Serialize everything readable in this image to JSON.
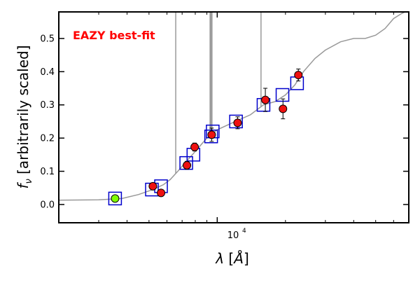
{
  "chart_data": {
    "type": "scatter",
    "title": "",
    "annotation": "EAZY best-fit",
    "annotation_color": "#ff0000",
    "xlabel": "λ [Å]",
    "ylabel": "f_ν [arbitrarily scaled]",
    "xscale": "log",
    "xlim": [
      2000,
      70000
    ],
    "ylim": [
      -0.055,
      0.58
    ],
    "grid": false,
    "x_tick_labels": [
      {
        "value": 10000,
        "label": "10^4"
      }
    ],
    "y_ticks": [
      0.0,
      0.1,
      0.2,
      0.3,
      0.4,
      0.5
    ],
    "y_tick_labels": [
      "0.0",
      "0.1",
      "0.2",
      "0.3",
      "0.4",
      "0.5"
    ],
    "colors": {
      "observed": "#ee1111",
      "template_flux": "#0000cc",
      "highlight": "#7fff00",
      "template_line": "#999999"
    },
    "series": [
      {
        "kind": "observed_photometry",
        "points": [
          {
            "x": 3543,
            "y": 0.018,
            "err": 0.005,
            "highlight": true
          },
          {
            "x": 5200,
            "y": 0.055,
            "err": 0.005
          },
          {
            "x": 5650,
            "y": 0.035,
            "err": 0.005
          },
          {
            "x": 7350,
            "y": 0.118,
            "err": 0.012
          },
          {
            "x": 7950,
            "y": 0.173,
            "err": 0.012
          },
          {
            "x": 9450,
            "y": 0.21,
            "err": 0.02
          },
          {
            "x": 12300,
            "y": 0.246,
            "err": 0.018
          },
          {
            "x": 16300,
            "y": 0.315,
            "err": 0.035
          },
          {
            "x": 19500,
            "y": 0.288,
            "err": 0.03
          },
          {
            "x": 22800,
            "y": 0.39,
            "err": 0.018
          }
        ]
      },
      {
        "kind": "template_flux",
        "points": [
          {
            "x": 3543,
            "y": 0.018
          },
          {
            "x": 5150,
            "y": 0.045
          },
          {
            "x": 5650,
            "y": 0.055
          },
          {
            "x": 7300,
            "y": 0.125
          },
          {
            "x": 7850,
            "y": 0.15
          },
          {
            "x": 9400,
            "y": 0.205
          },
          {
            "x": 9550,
            "y": 0.22
          },
          {
            "x": 12100,
            "y": 0.25
          },
          {
            "x": 16000,
            "y": 0.3
          },
          {
            "x": 19400,
            "y": 0.33
          },
          {
            "x": 22500,
            "y": 0.365
          }
        ]
      },
      {
        "kind": "template_spectrum",
        "points": [
          {
            "x": 2000,
            "y": 0.013
          },
          {
            "x": 3000,
            "y": 0.014
          },
          {
            "x": 3800,
            "y": 0.018
          },
          {
            "x": 4500,
            "y": 0.03
          },
          {
            "x": 5200,
            "y": 0.045
          },
          {
            "x": 5800,
            "y": 0.06
          },
          {
            "x": 6200,
            "y": 0.075
          },
          {
            "x": 6700,
            "y": 0.1
          },
          {
            "x": 7200,
            "y": 0.125
          },
          {
            "x": 8000,
            "y": 0.16
          },
          {
            "x": 9000,
            "y": 0.2
          },
          {
            "x": 10000,
            "y": 0.225
          },
          {
            "x": 12000,
            "y": 0.25
          },
          {
            "x": 14000,
            "y": 0.27
          },
          {
            "x": 16000,
            "y": 0.3
          },
          {
            "x": 18000,
            "y": 0.31
          },
          {
            "x": 20000,
            "y": 0.33
          },
          {
            "x": 22000,
            "y": 0.36
          },
          {
            "x": 24000,
            "y": 0.4
          },
          {
            "x": 27000,
            "y": 0.44
          },
          {
            "x": 30000,
            "y": 0.465
          },
          {
            "x": 35000,
            "y": 0.49
          },
          {
            "x": 40000,
            "y": 0.5
          },
          {
            "x": 45000,
            "y": 0.5
          },
          {
            "x": 50000,
            "y": 0.51
          },
          {
            "x": 55000,
            "y": 0.53
          },
          {
            "x": 60000,
            "y": 0.56
          },
          {
            "x": 65000,
            "y": 0.575
          },
          {
            "x": 70000,
            "y": 0.585
          }
        ],
        "emission_lines": [
          {
            "x": 6560,
            "peak": 0.6
          },
          {
            "x": 9300,
            "peak": 0.6
          },
          {
            "x": 9380,
            "peak": 0.6
          },
          {
            "x": 9480,
            "peak": 0.6
          },
          {
            "x": 15600,
            "peak": 0.6
          }
        ]
      }
    ]
  }
}
